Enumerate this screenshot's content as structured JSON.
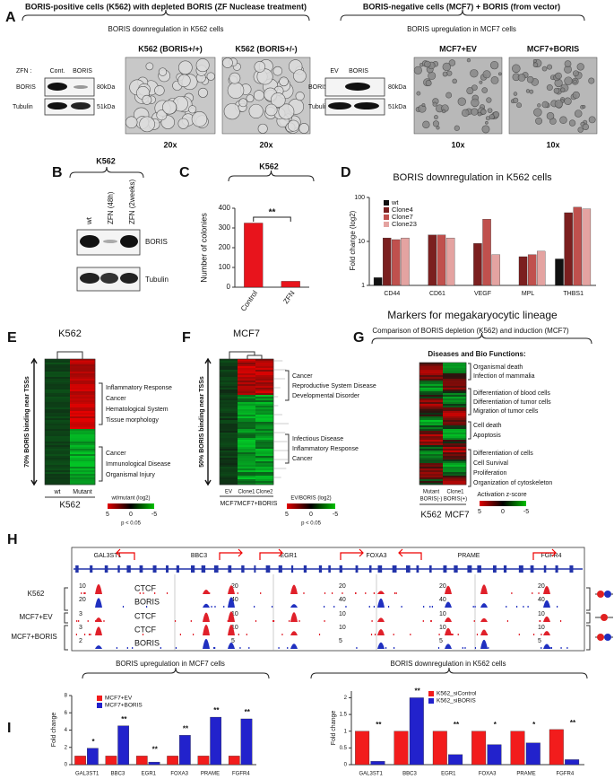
{
  "panel_a": {
    "label": "A",
    "left_title": "BORIS-positive cells (K562) with depleted BORIS (ZF Nuclease treatment)",
    "left_subtitle": "BORIS downregulation in K562 cells",
    "right_title": "BORIS-negative cells (MCF7) + BORIS (from vector)",
    "right_subtitle": "BORIS upregulation in MCF7 cells",
    "left_blot": {
      "zfn_label": "ZFN :",
      "lanes": [
        "Cont.",
        "BORIS"
      ],
      "rows": [
        "BORIS",
        "Tubulin"
      ],
      "sizes": [
        "80kDa",
        "51kDa"
      ]
    },
    "left_images": [
      {
        "title": "K562 (BORIS+/+)",
        "magnification": "20x"
      },
      {
        "title": "K562 (BORIS+/-)",
        "magnification": "20x"
      }
    ],
    "right_blot": {
      "lanes": [
        "EV",
        "BORIS"
      ],
      "rows": [
        "BORIS",
        "Tubulin"
      ],
      "sizes": [
        "80kDa",
        "51kDa"
      ]
    },
    "right_images": [
      {
        "title": "MCF7+EV",
        "magnification": "10x"
      },
      {
        "title": "MCF7+BORIS",
        "magnification": "10x"
      }
    ]
  },
  "panel_b": {
    "label": "B",
    "cell_line": "K562",
    "lanes": [
      "wt",
      "ZFN (48h)",
      "ZFN (2weeks)"
    ],
    "rows": [
      "BORIS",
      "Tubulin"
    ]
  },
  "panel_e": {
    "label": "E",
    "title": "K562",
    "side_label": "70% BORIS binding near TSSs",
    "upper_terms": [
      "Inflammatory Response",
      "Cancer",
      "Hematological System",
      "Tissue morphology"
    ],
    "lower_terms": [
      "Cancer",
      "Immunological Disease",
      "Organismal Injury"
    ],
    "columns": [
      "wt",
      "Mutant"
    ],
    "group": "K562",
    "legend_title": "wt/mutant (log2)",
    "legend_ticks": [
      5,
      0,
      -5
    ],
    "legend_note": "p < 0.05"
  },
  "panel_f": {
    "label": "F",
    "title": "MCF7",
    "side_label": "50% BORIS binding near TSSs",
    "upper_terms": [
      "Cancer",
      "Reproductive System Disease",
      "Developmental Disorder"
    ],
    "lower_terms": [
      "Infectious Disease",
      "Inflammatory Response",
      "Cancer"
    ],
    "columns": [
      "EV",
      "Clone1",
      "Clone2"
    ],
    "groups": [
      "MCF7",
      "MCF7+BORIS"
    ],
    "legend_title": "EV/BORIS (log2)",
    "legend_ticks": [
      5,
      0,
      -5
    ],
    "legend_note": "p < 0.05"
  },
  "panel_g": {
    "label": "G",
    "title": "Comparison of BORIS depletion (K562) and induction (MCF7)",
    "list_title": "Diseases and Bio Functions:",
    "terms": [
      "Organismal death",
      "Infection of mammalia",
      "Differentiation of blood cells",
      "Differentiation of tumor cells",
      "Migration of tumor cells",
      "Cell death",
      "Apoptosis",
      "Differentiation of cells",
      "Cell Survival",
      "Proliferation",
      "Organization of cytoskeleton"
    ],
    "columns": [
      [
        "Mutant",
        "BORIS(-)"
      ],
      [
        "Clone1",
        "BORIS(+)"
      ]
    ],
    "groups": [
      "K562",
      "MCF7"
    ],
    "legend_title": "Activation z-score",
    "legend_ticks": [
      5,
      0,
      -5
    ]
  },
  "panel_h": {
    "label": "H",
    "genes": [
      "GAL3ST1",
      "BBC3",
      "EGR1",
      "FOXA3",
      "PRAME",
      "FGFR4"
    ],
    "samples": [
      "K562",
      "MCF7+EV",
      "MCF7+BORIS"
    ],
    "tracks": [
      {
        "name": "CTCF",
        "scales": [
          10,
          20,
          20,
          20,
          20
        ]
      },
      {
        "name": "BORIS",
        "scales": [
          20,
          40,
          40,
          40,
          40
        ]
      },
      {
        "name": "CTCF",
        "scales": [
          3,
          10,
          10,
          10,
          10
        ]
      },
      {
        "name": "CTCF",
        "scales": [
          3,
          10,
          10,
          10,
          10
        ]
      },
      {
        "name": "BORIS",
        "scales": [
          2,
          5,
          5,
          5,
          5
        ]
      }
    ]
  },
  "chart_data": [
    {
      "type": "bar",
      "label": "C",
      "title": "K562",
      "annotation": "**",
      "ylabel": "Number of colonies",
      "categories": [
        "Control",
        "ZFN"
      ],
      "values": [
        325,
        30
      ],
      "color": "#e8141c",
      "ylim": [
        0,
        400
      ],
      "yticks": [
        0,
        100,
        200,
        300,
        400
      ]
    },
    {
      "type": "grouped_bar",
      "label": "D",
      "title": "BORIS downregulation in K562 cells",
      "ylabel": "Fold change (log2)",
      "xlabel": "Markers for megakaryocytic lineage",
      "log_scale": true,
      "legend": "upper-left",
      "categories": [
        "CD44",
        "CD61",
        "VEGF",
        "MPL",
        "THBS1"
      ],
      "series": [
        {
          "name": "wt",
          "color": "#111111",
          "values": [
            1.5,
            1,
            1,
            1,
            4
          ]
        },
        {
          "name": "Clone4",
          "color": "#7b1f1f",
          "values": [
            12,
            14,
            9,
            4.5,
            45
          ]
        },
        {
          "name": "Clone7",
          "color": "#c0504d",
          "values": [
            11,
            14,
            32,
            5,
            60
          ]
        },
        {
          "name": "Clone23",
          "color": "#e4a3a1",
          "values": [
            12,
            12,
            5,
            6,
            55
          ]
        }
      ],
      "ylim": [
        1,
        100
      ],
      "yticks": [
        1,
        10,
        100
      ]
    },
    {
      "type": "grouped_bar",
      "label": "I",
      "title": "BORIS upregulation in MCF7 cells",
      "ylabel": "Fold change",
      "legend": "upper-left",
      "categories": [
        "GAL3ST1",
        "BBC3",
        "EGR1",
        "FOXA3",
        "PRAME",
        "FGFR4"
      ],
      "series": [
        {
          "name": "MCF7+EV",
          "color": "#f21c1c",
          "values": [
            1,
            1,
            1,
            1,
            1,
            1
          ]
        },
        {
          "name": "MCF7+BORIS",
          "color": "#2222cc",
          "values": [
            1.9,
            4.5,
            0.3,
            3.4,
            5.5,
            5.3
          ]
        }
      ],
      "annotations": [
        "*",
        "**",
        "**",
        "**",
        "**",
        "**"
      ],
      "ylim": [
        0,
        8
      ],
      "yticks": [
        0,
        2,
        4,
        6,
        8
      ]
    },
    {
      "type": "grouped_bar",
      "title": "BORIS downregulation in K562 cells",
      "ylabel": "Fold change",
      "legend": "upper-right",
      "categories": [
        "GAL3ST1",
        "BBC3",
        "EGR1",
        "FOXA3",
        "PRAME",
        "FGFR4"
      ],
      "series": [
        {
          "name": "K562_siControl",
          "color": "#f21c1c",
          "values": [
            1,
            1,
            1,
            1,
            1,
            1.05
          ]
        },
        {
          "name": "K562_siBORIS",
          "color": "#2222cc",
          "values": [
            0.1,
            2,
            0.3,
            0.6,
            0.65,
            0.15
          ]
        }
      ],
      "annotations": [
        "**",
        "**",
        "**",
        "*",
        "*",
        "**"
      ],
      "ylim": [
        0,
        2.2
      ],
      "yticks": [
        0,
        0.5,
        1,
        1.5,
        2
      ]
    }
  ]
}
